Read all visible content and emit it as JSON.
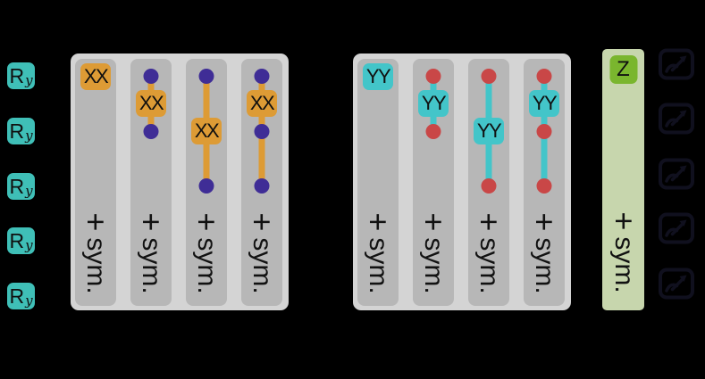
{
  "figure": {
    "description": "quantum circuit ansatz schematic: Ry rotations, symmetrized XX couplings, symmetrized YY couplings, symmetrized Z layer, measurements",
    "background": "#000000"
  },
  "colors": {
    "background": "#000000",
    "ry_gate": "#3fbfb7",
    "xx_gate": "#dd9b35",
    "xx_dot": "#3f2d96",
    "yy_gate": "#43c5c9",
    "yy_dot": "#c94747",
    "z_gate": "#7ab62e",
    "z_column": "#c7d6ad",
    "panel_outer": "#d4d4d4",
    "panel_inner": "#b7b7b7",
    "measure_icon": "#10101e",
    "gate_text": "#101010"
  },
  "qubits": {
    "count": 5,
    "rotation_label": "R",
    "rotation_subscript": "y"
  },
  "xx_section": {
    "gate_label": "XX",
    "plus_label": "+",
    "sym_label": "sym.",
    "columns": [
      {
        "dots": [],
        "box_between": [
          1,
          1
        ]
      },
      {
        "dots": [
          1,
          2
        ],
        "box_between": [
          1,
          2
        ]
      },
      {
        "dots": [
          1,
          3
        ],
        "box_between": [
          1,
          3
        ]
      },
      {
        "dots": [
          1,
          2,
          3
        ],
        "box_between": [
          1,
          2
        ]
      }
    ]
  },
  "yy_section": {
    "gate_label": "YY",
    "plus_label": "+",
    "sym_label": "sym.",
    "columns": [
      {
        "dots": [],
        "box_between": [
          1,
          1
        ]
      },
      {
        "dots": [
          1,
          2
        ],
        "box_between": [
          1,
          2
        ]
      },
      {
        "dots": [
          1,
          3
        ],
        "box_between": [
          1,
          3
        ]
      },
      {
        "dots": [
          1,
          2,
          3
        ],
        "box_between": [
          1,
          2
        ]
      }
    ]
  },
  "z_section": {
    "gate_label": "Z",
    "plus_label": "+",
    "sym_label": "sym."
  },
  "measurements": {
    "icon": "gauge-measure-icon",
    "count": 5
  }
}
